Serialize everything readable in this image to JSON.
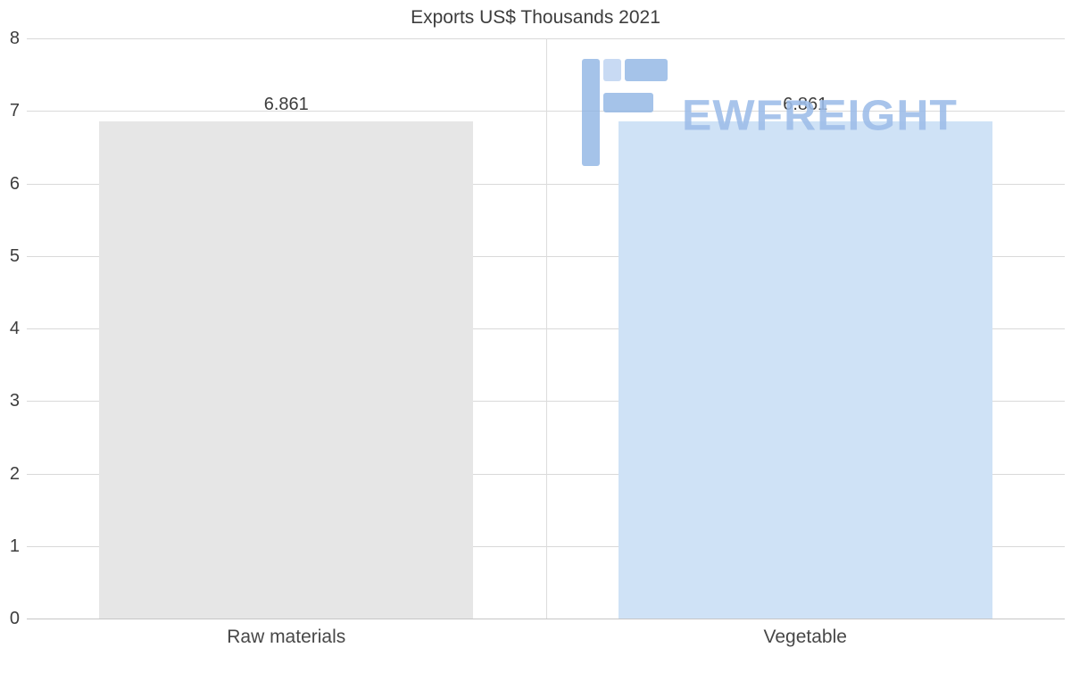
{
  "chart_data": {
    "type": "bar",
    "title": "Exports US$ Thousands 2021",
    "categories": [
      "Raw materials",
      "Vegetable"
    ],
    "values": [
      6.861,
      6.861
    ],
    "value_labels": [
      "6.861",
      "6.861"
    ],
    "yticks": [
      "8",
      "7",
      "6",
      "5",
      "4",
      "3",
      "2",
      "1",
      "0"
    ],
    "ylim": [
      0,
      8
    ],
    "grid": true,
    "legend": false,
    "bar_colors": [
      "#e6e6e6",
      "#cfe2f6"
    ],
    "xlabel": "",
    "ylabel": ""
  },
  "watermark": {
    "text": "EWFREIGHT",
    "color": "#9dbde9",
    "icon_color": "#8db2e2",
    "icon_color_light": "#b9cff0"
  }
}
